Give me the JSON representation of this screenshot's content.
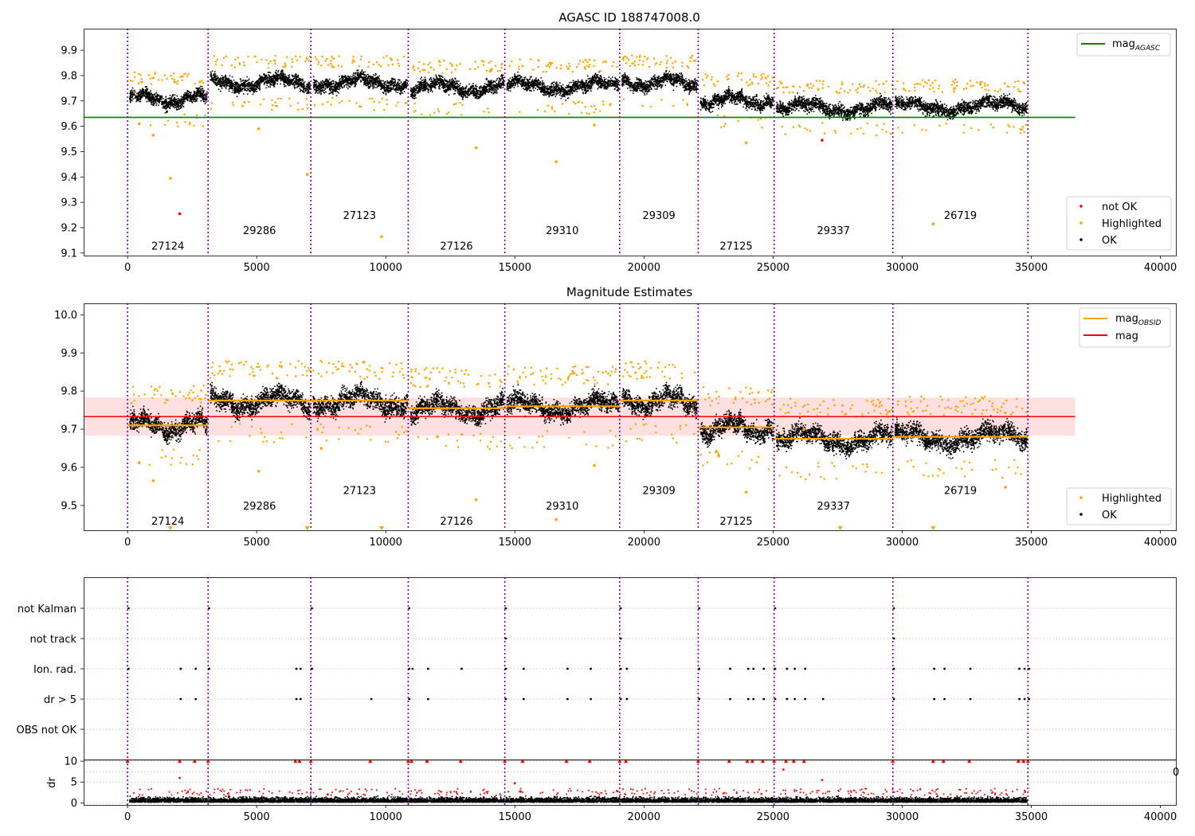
{
  "chart_data": [
    {
      "type": "scatter",
      "title": "AGASC ID 188747008.0",
      "xlim": [
        -1700,
        40600
      ],
      "ylim": [
        9.09,
        9.985
      ],
      "xticks": [
        0,
        5000,
        10000,
        15000,
        20000,
        25000,
        30000,
        35000,
        40000
      ],
      "yticks": [
        9.1,
        9.2,
        9.3,
        9.4,
        9.5,
        9.6,
        9.7,
        9.8,
        9.9
      ],
      "ytick_labels": [
        "9.1",
        "9.2",
        "9.3",
        "9.4",
        "9.5",
        "9.6",
        "9.7",
        "9.8",
        "9.9"
      ],
      "obsid_boundaries": [
        0,
        3120,
        7100,
        10870,
        14610,
        19060,
        22100,
        25040,
        29640,
        34870
      ],
      "obsids": [
        "27124",
        "29286",
        "27123",
        "27126",
        "29310",
        "29309",
        "27125",
        "29337",
        "26719"
      ],
      "obsid_label_y": [
        9.13,
        9.19,
        9.25,
        9.13,
        9.19,
        9.25,
        9.13,
        9.19,
        9.25
      ],
      "segment_levels": [
        9.71,
        9.775,
        9.775,
        9.755,
        9.76,
        9.775,
        9.705,
        9.675,
        9.68
      ],
      "agasc_mag": 9.635,
      "agasc_mag_line_x": [
        -1700,
        36700
      ],
      "legend_upper": [
        {
          "label": "mag",
          "sub": "AGASC",
          "color": "#008000"
        }
      ],
      "legend_lower": [
        {
          "label": "not OK",
          "color": "#ff0000"
        },
        {
          "label": "Highlighted",
          "color": "#ffa500"
        },
        {
          "label": "OK",
          "color": "#000000"
        }
      ],
      "outliers_highlighted": [
        [
          450,
          9.61
        ],
        [
          1000,
          9.565
        ],
        [
          1660,
          9.395
        ],
        [
          5080,
          9.59
        ],
        [
          6960,
          9.41
        ],
        [
          9840,
          9.165
        ],
        [
          13500,
          9.515
        ],
        [
          16600,
          9.46
        ],
        [
          18080,
          9.605
        ],
        [
          23960,
          9.535
        ],
        [
          31200,
          9.215
        ]
      ],
      "outliers_notok": [
        [
          2020,
          9.255
        ],
        [
          26900,
          9.545
        ]
      ]
    },
    {
      "type": "scatter",
      "title": "Magnitude Estimates",
      "xlim": [
        -1700,
        40600
      ],
      "ylim": [
        9.435,
        10.03
      ],
      "xticks": [
        0,
        5000,
        10000,
        15000,
        20000,
        25000,
        30000,
        35000,
        40000
      ],
      "yticks": [
        9.5,
        9.6,
        9.7,
        9.8,
        9.9,
        10.0
      ],
      "ytick_labels": [
        "9.5",
        "9.6",
        "9.7",
        "9.8",
        "9.9",
        "10.0"
      ],
      "obsid_label_y": [
        9.46,
        9.5,
        9.54,
        9.46,
        9.5,
        9.54,
        9.46,
        9.5,
        9.54
      ],
      "mean_mag": 9.733,
      "mag_band": [
        9.683,
        9.783
      ],
      "legend_upper": [
        {
          "label": "mag",
          "sub": "OBSID",
          "color": "#ffa500"
        },
        {
          "label": "mag",
          "color": "#ff0000"
        }
      ],
      "legend_lower": [
        {
          "label": "Highlighted",
          "color": "#ffa500"
        },
        {
          "label": "OK",
          "color": "#000000"
        }
      ],
      "outliers_highlighted": [
        [
          450,
          9.612
        ],
        [
          1000,
          9.565
        ],
        [
          5080,
          9.59
        ],
        [
          7500,
          9.65
        ],
        [
          12000,
          9.68
        ],
        [
          13500,
          9.515
        ],
        [
          16600,
          9.463
        ],
        [
          18080,
          9.605
        ],
        [
          22900,
          9.63
        ],
        [
          23960,
          9.535
        ],
        [
          26200,
          9.7
        ],
        [
          34000,
          9.548
        ]
      ],
      "clipped_x": [
        1660,
        6960,
        9840,
        27600,
        31200
      ]
    },
    {
      "type": "scatter",
      "title": "",
      "xlim": [
        -1700,
        40600
      ],
      "flag_rows": [
        "not Kalman",
        "not track",
        "Ion. rad.",
        "dr > 5",
        "OBS not OK"
      ],
      "flags": {
        "not Kalman": [
          0,
          3120,
          7100,
          10870,
          14610,
          19060,
          22100,
          25040,
          29640
        ],
        "not track": [
          14610,
          19060,
          29640
        ],
        "Ion. rad.": [
          0,
          2020,
          2600,
          3120,
          6500,
          6660,
          7100,
          10870,
          11000,
          11600,
          12900,
          14610,
          15300,
          17000,
          17900,
          19060,
          19300,
          22100,
          23300,
          24000,
          24200,
          24600,
          25040,
          25500,
          25800,
          26200,
          29640,
          31200,
          31600,
          32600,
          34500,
          34700,
          34870
        ],
        "dr > 5": [
          2020,
          2600,
          6500,
          6660,
          9400,
          10870,
          11600,
          14610,
          15300,
          17000,
          17900,
          19060,
          19300,
          22100,
          23300,
          24000,
          24200,
          24600,
          25040,
          25500,
          25800,
          26200,
          26900,
          29640,
          31200,
          31600,
          32600,
          34500,
          34700,
          34870
        ],
        "OBS not OK": []
      }
    },
    {
      "type": "scatter",
      "title": "",
      "ylabel": "dr",
      "xlim": [
        -1700,
        40600
      ],
      "ylim": [
        -0.5,
        10.4
      ],
      "xticks": [
        0,
        5000,
        10000,
        15000,
        20000,
        25000,
        30000,
        35000,
        40000
      ],
      "yticks": [
        0,
        5,
        10
      ],
      "ytick_labels": [
        "0",
        "5",
        "10"
      ],
      "dr_high_x": [
        0,
        2020,
        2600,
        3120,
        6500,
        6660,
        7100,
        9400,
        10870,
        11000,
        11600,
        12900,
        14610,
        15300,
        17000,
        17900,
        19060,
        19300,
        22100,
        23300,
        24000,
        24200,
        24600,
        25040,
        25500,
        25800,
        26200,
        29640,
        31200,
        31600,
        32600,
        34500,
        34700,
        34870
      ],
      "dr_mid": [
        [
          2020,
          6
        ],
        [
          25400,
          8
        ],
        [
          26900,
          5.5
        ],
        [
          15000,
          4.7
        ]
      ],
      "overflow_tick_label": "0"
    }
  ]
}
